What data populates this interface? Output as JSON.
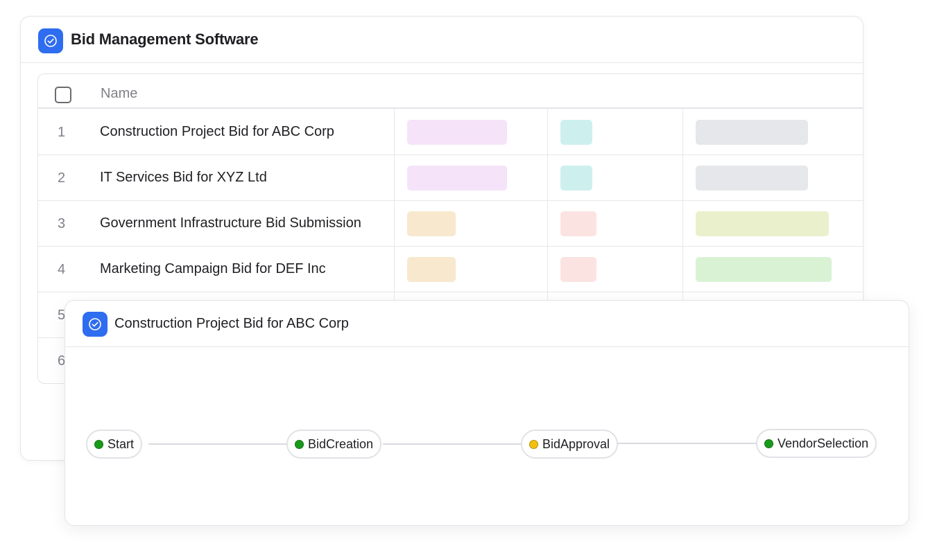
{
  "main_card": {
    "title": "Bid Management Software",
    "table": {
      "header_name": "Name",
      "rows": [
        {
          "num": "1",
          "name": "Construction Project Bid for ABC Corp",
          "colors": [
            "#f5e3f9",
            "#cdf0ee",
            "#e6e7ea"
          ]
        },
        {
          "num": "2",
          "name": "IT Services Bid for XYZ Ltd",
          "colors": [
            "#f5e3f9",
            "#cdf0ee",
            "#e6e7ea"
          ]
        },
        {
          "num": "3",
          "name": "Government Infrastructure Bid Submission",
          "colors": [
            "#f8e8ce",
            "#fbe3e2",
            "#ebf0cc"
          ]
        },
        {
          "num": "4",
          "name": "Marketing Campaign Bid for DEF Inc",
          "colors": [
            "#f8e8ce",
            "#fbe3e2",
            "#d9f2d4"
          ]
        },
        {
          "num": "5",
          "name": "",
          "colors": []
        },
        {
          "num": "6",
          "name": "",
          "colors": []
        }
      ]
    }
  },
  "flow_card": {
    "title": "Construction Project Bid for ABC Corp",
    "nodes": [
      {
        "label": "Start",
        "status_color": "#1a9a1a"
      },
      {
        "label": "BidCreation",
        "status_color": "#1a9a1a"
      },
      {
        "label": "BidApproval",
        "status_color": "#f2c10f"
      },
      {
        "label": "VendorSelection",
        "status_color": "#1a9a1a"
      }
    ]
  },
  "colors": {
    "accent": "#2f6df0"
  },
  "icons": {
    "app_icon": "check-circle-icon"
  }
}
